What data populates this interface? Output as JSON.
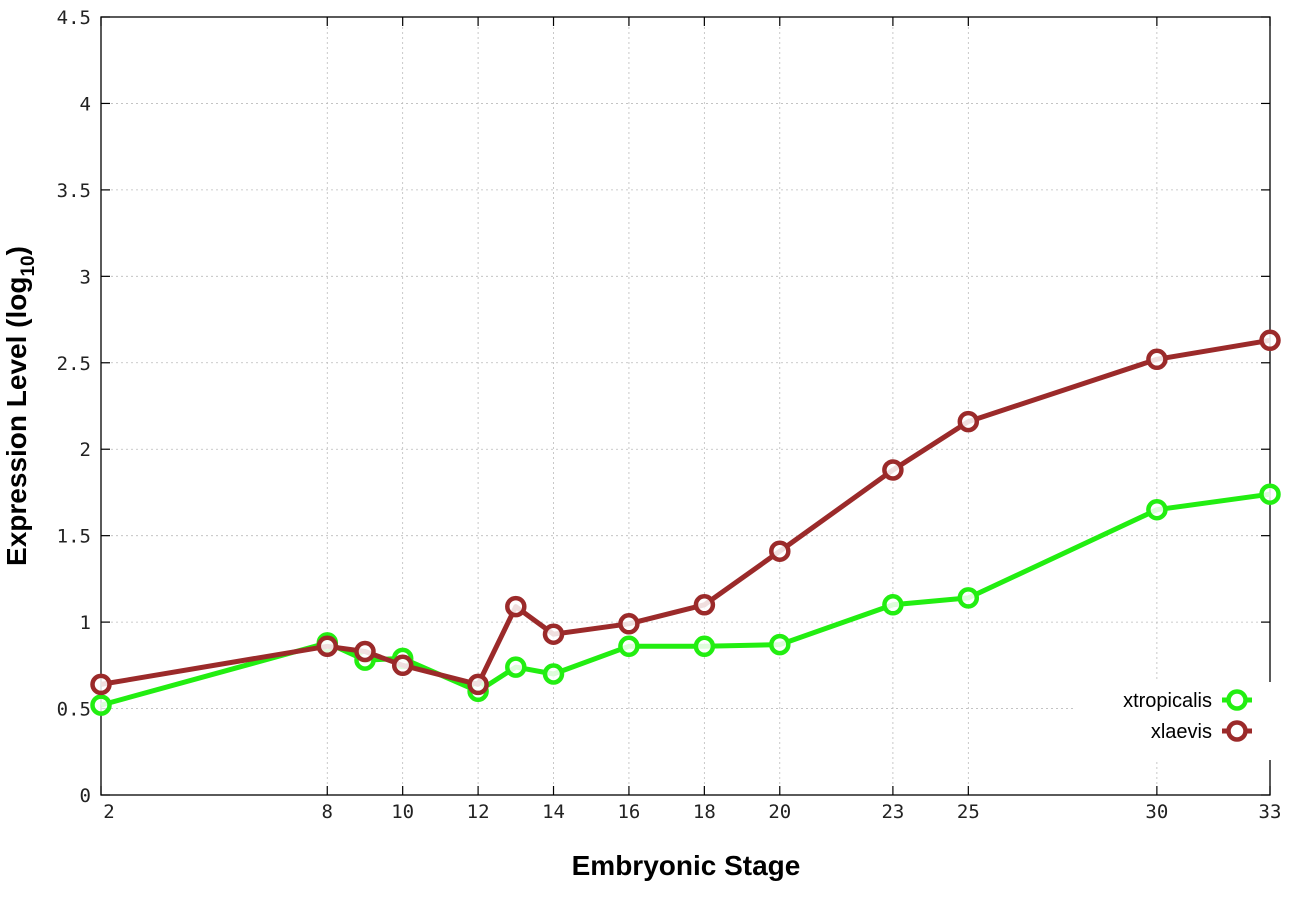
{
  "chart_data": {
    "type": "line",
    "xlabel": "Embryonic Stage",
    "ylabel_main": "Expression Level (log",
    "ylabel_sub": "10",
    "ylabel_close": ")",
    "xlim": [
      2,
      33
    ],
    "ylim": [
      0,
      4.5
    ],
    "xticks": [
      2,
      8,
      10,
      12,
      14,
      16,
      18,
      20,
      23,
      25,
      30,
      33
    ],
    "yticks": [
      0,
      0.5,
      1,
      1.5,
      2,
      2.5,
      3,
      3.5,
      4,
      4.5
    ],
    "ytick_labels": [
      "0",
      "0.5",
      "1",
      "1.5",
      "2",
      "2.5",
      "3",
      "3.5",
      "4",
      "4.5"
    ],
    "grid": true,
    "legend_position": "bottom-right",
    "series": [
      {
        "name": "xtropicalis",
        "color": "#22ee11",
        "points": [
          [
            2,
            0.52
          ],
          [
            8,
            0.88
          ],
          [
            9,
            0.78
          ],
          [
            10,
            0.79
          ],
          [
            12,
            0.6
          ],
          [
            13,
            0.74
          ],
          [
            14,
            0.7
          ],
          [
            16,
            0.86
          ],
          [
            18,
            0.86
          ],
          [
            20,
            0.87
          ],
          [
            23,
            1.1
          ],
          [
            25,
            1.14
          ],
          [
            30,
            1.65
          ],
          [
            33,
            1.74
          ]
        ]
      },
      {
        "name": "xlaevis",
        "color": "#9b2a2a",
        "points": [
          [
            2,
            0.64
          ],
          [
            8,
            0.86
          ],
          [
            9,
            0.83
          ],
          [
            10,
            0.75
          ],
          [
            12,
            0.64
          ],
          [
            13,
            1.09
          ],
          [
            14,
            0.93
          ],
          [
            16,
            0.99
          ],
          [
            18,
            1.1
          ],
          [
            20,
            1.41
          ],
          [
            23,
            1.88
          ],
          [
            25,
            2.16
          ],
          [
            30,
            2.52
          ],
          [
            33,
            2.63
          ]
        ]
      }
    ]
  }
}
